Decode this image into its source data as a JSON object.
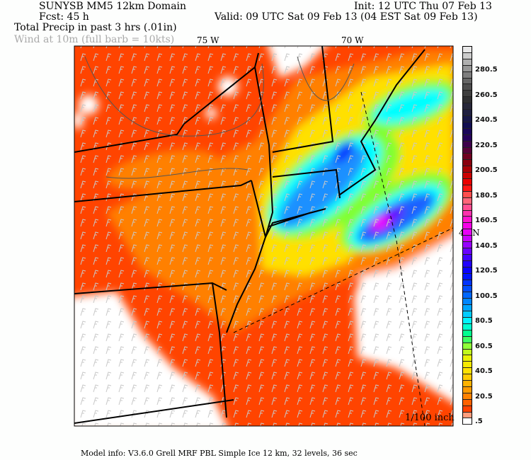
{
  "header": {
    "title": "SUNYSB MM5 12km Domain",
    "init": "Init: 12 UTC Thu 07 Feb 13",
    "forecast": "Fcst:  45 h",
    "valid": "Valid: 09 UTC Sat 09 Feb 13 (04 EST Sat 09 Feb 13)",
    "field": "Total Precip in past 3 hrs (.01in)",
    "wind": "Wind at 10m (full barb = 10kts)"
  },
  "map": {
    "lon_labels": [
      "75 W",
      "70 W"
    ],
    "lat_label": "40 N",
    "units": "1/100 inch"
  },
  "colorbar": {
    "labels": [
      "280.5",
      "260.5",
      "240.5",
      "220.5",
      "200.5",
      "180.5",
      "160.5",
      "140.5",
      "120.5",
      "100.5",
      "80.5",
      "60.5",
      "40.5",
      "20.5",
      ".5"
    ],
    "colors_bottom_to_top": [
      "#ffffff",
      "#ff4000",
      "#ff8000",
      "#ffb000",
      "#ffe000",
      "#f0f000",
      "#a0ff30",
      "#00ff80",
      "#00ffff",
      "#00b0ff",
      "#0070ff",
      "#0040ff",
      "#0000ff",
      "#3000ff",
      "#8000ff",
      "#e000ff",
      "#ff00e0",
      "#ff40a0",
      "#ff7070",
      "#ff0000",
      "#c00000",
      "#800010",
      "#500040",
      "#200060",
      "#101050",
      "#202040",
      "#303030",
      "#505050",
      "#808080",
      "#b0b0b0",
      "#e8e8e8"
    ],
    "colors": {
      "white": "#ffffff",
      "light_precip": "#ff4400",
      "max_precip": "#ff00ff"
    }
  },
  "footer": {
    "model_info": "Model info: V3.6.0   Grell      MRF PBL      Simple Ice     12 km,   32 levels,    36 sec"
  }
}
